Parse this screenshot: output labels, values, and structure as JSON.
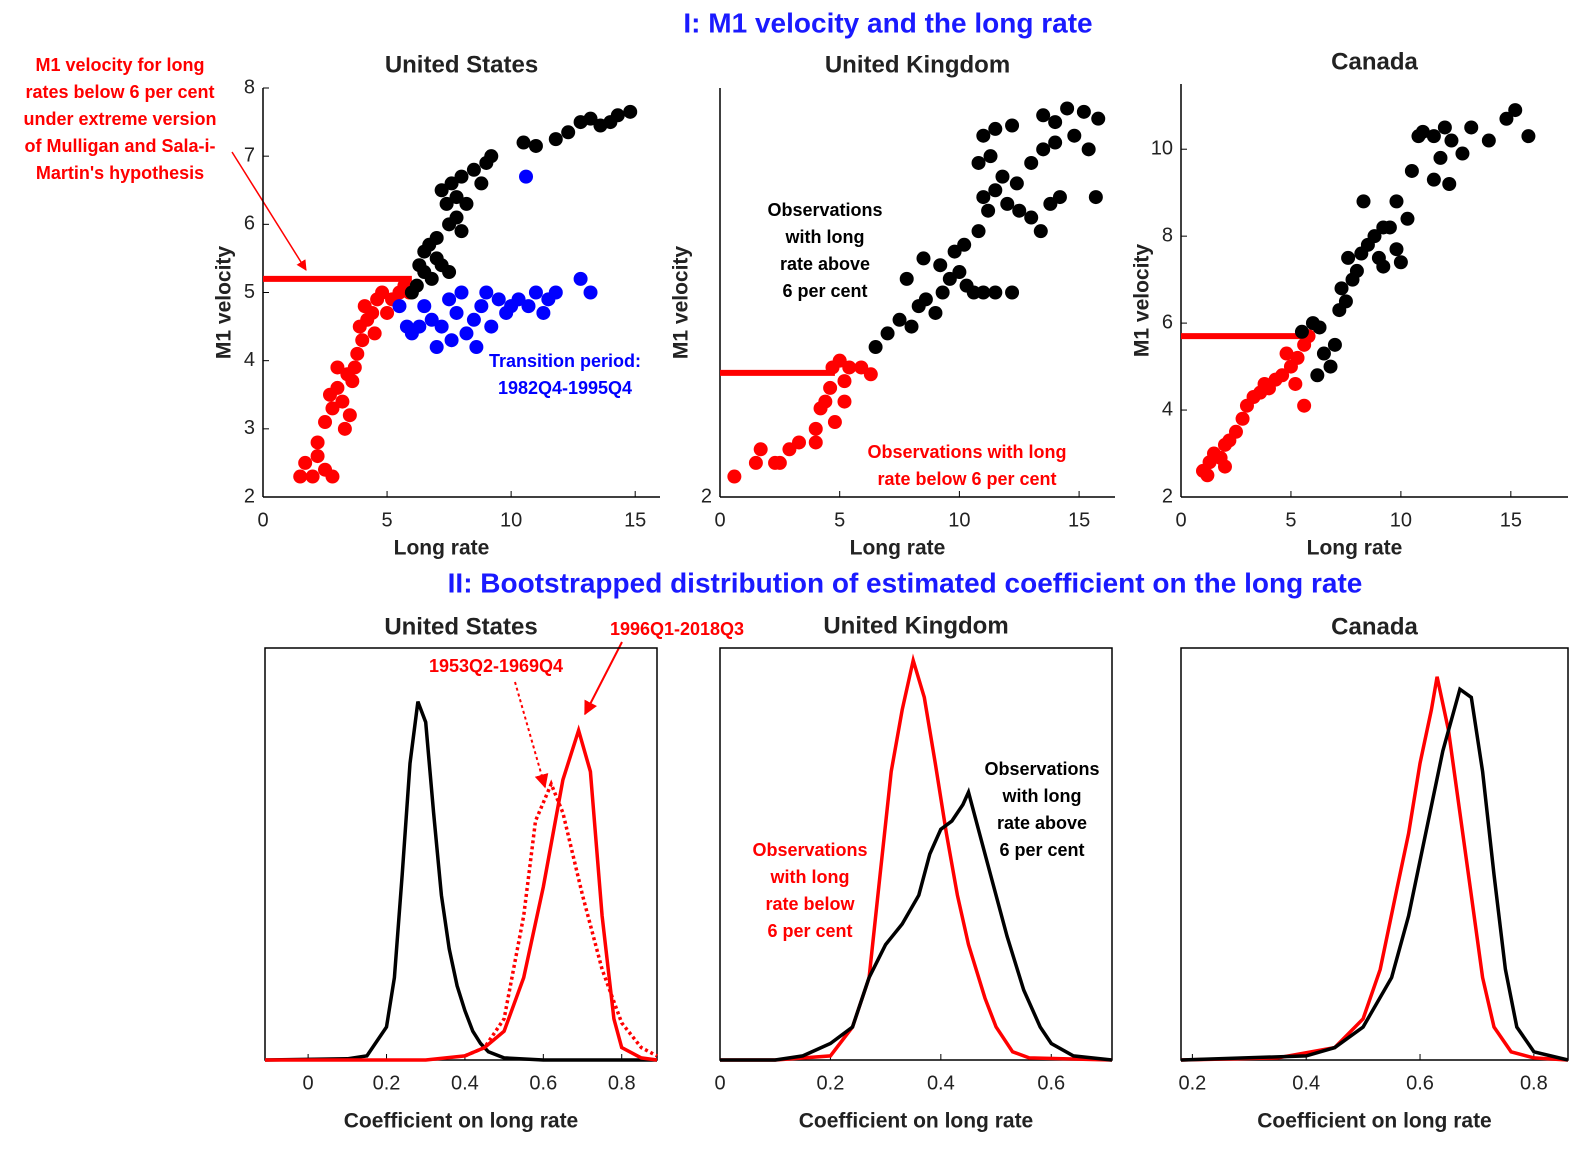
{
  "headings": [
    "I: M1 velocity and the long rate",
    "II: Bootstrapped distribution of estimated coefficient on the long rate"
  ],
  "heading_color": "#1a1aff",
  "chart_data": [
    {
      "type": "scatter",
      "title": "United States",
      "xlabel": "Long rate",
      "ylabel": "M1 velocity",
      "xlim": [
        0,
        16
      ],
      "ylim": [
        2,
        8
      ],
      "xticks": [
        0,
        5,
        10,
        15
      ],
      "yticks": [
        2,
        3,
        4,
        5,
        6,
        7,
        8
      ],
      "box": false,
      "hline": {
        "y": 5.2,
        "x": [
          0,
          6
        ],
        "color": "#ff0000"
      },
      "series": [
        {
          "color": "#ff0000",
          "x": [
            1.5,
            1.7,
            2,
            2.2,
            2.5,
            2.8,
            2.2,
            2.5,
            2.8,
            3,
            3.2,
            3.3,
            3.5,
            3.4,
            3.6,
            3.7,
            3.8,
            4,
            3.9,
            4.2,
            4.1,
            4.4,
            4.5,
            4.6,
            4.8,
            5,
            5.2,
            5.5,
            5.7,
            5.9,
            3,
            2.7
          ],
          "values": [
            2.3,
            2.5,
            2.3,
            2.6,
            2.4,
            2.3,
            2.8,
            3.1,
            3.3,
            3.6,
            3.4,
            3.0,
            3.2,
            3.8,
            3.7,
            3.9,
            4.1,
            4.3,
            4.5,
            4.6,
            4.8,
            4.7,
            4.4,
            4.9,
            5.0,
            4.7,
            4.9,
            5.0,
            5.1,
            5.0,
            3.9,
            3.5
          ]
        },
        {
          "color": "#000000",
          "x": [
            6,
            6.2,
            6.5,
            6.8,
            7,
            7.2,
            7.5,
            6.5,
            7,
            7.5,
            7.8,
            8,
            7.4,
            7.2,
            7.6,
            7.8,
            8.2,
            8,
            8.5,
            9,
            9.2,
            8.8,
            10.5,
            11,
            11.8,
            12.3,
            12.8,
            13.2,
            13.6,
            14,
            14.3,
            14.8,
            6.3,
            6.7
          ],
          "values": [
            5.0,
            5.1,
            5.3,
            5.2,
            5.5,
            5.4,
            5.3,
            5.6,
            5.8,
            6.0,
            6.1,
            5.9,
            6.3,
            6.5,
            6.6,
            6.4,
            6.3,
            6.7,
            6.8,
            6.9,
            7.0,
            6.6,
            7.2,
            7.15,
            7.25,
            7.35,
            7.5,
            7.55,
            7.45,
            7.5,
            7.6,
            7.65,
            5.4,
            5.7
          ]
        },
        {
          "color": "#0000ff",
          "x": [
            5.5,
            5.8,
            6,
            6.3,
            6.5,
            6.8,
            7,
            7.2,
            7.5,
            7.8,
            8,
            8.2,
            8.5,
            8.8,
            9,
            9.2,
            9.5,
            9.8,
            10,
            10.3,
            10.7,
            11,
            11.3,
            11.5,
            11.8,
            12.8,
            13.2,
            10.6,
            8.6,
            7.6
          ],
          "values": [
            4.8,
            4.5,
            4.4,
            4.5,
            4.8,
            4.6,
            4.2,
            4.5,
            4.9,
            4.7,
            5.0,
            4.4,
            4.6,
            4.8,
            5.0,
            4.5,
            4.9,
            4.7,
            4.8,
            4.9,
            4.8,
            5.0,
            4.7,
            4.9,
            5.0,
            5.2,
            5.0,
            6.7,
            4.2,
            4.3
          ]
        }
      ],
      "annotations": [
        {
          "text": [
            "M1 velocity for long",
            "rates below 6 per cent",
            "under extreme version",
            "of Mulligan and Sala-i-",
            "Martin's hypothesis"
          ],
          "color": "#ff0000"
        },
        {
          "text": [
            "Transition period:",
            "1982Q4-1995Q4"
          ],
          "color": "#0000ff"
        }
      ]
    },
    {
      "type": "scatter",
      "title": "United Kingdom",
      "xlabel": "Long rate",
      "ylabel": "M1 velocity",
      "xlim": [
        0,
        16.5
      ],
      "ylim": [
        2,
        8
      ],
      "xticks": [
        0,
        5,
        10,
        15
      ],
      "yticks": [
        2
      ],
      "box": false,
      "hline": {
        "y": 3.82,
        "x": [
          0,
          4.8
        ],
        "color": "#ff0000"
      },
      "series": [
        {
          "color": "#ff0000",
          "x": [
            0.6,
            1.7,
            2.3,
            2.9,
            3.3,
            4.0,
            4.2,
            4.4,
            4.6,
            4.7,
            5.0,
            5.2,
            5.4,
            5.9,
            6.3,
            4.8,
            4.0,
            2.5,
            1.5,
            5.2
          ],
          "values": [
            2.3,
            2.7,
            2.5,
            2.7,
            2.8,
            3.0,
            3.3,
            3.4,
            3.6,
            3.9,
            4.0,
            3.7,
            3.9,
            3.9,
            3.8,
            3.1,
            2.8,
            2.5,
            2.5,
            3.4
          ]
        },
        {
          "color": "#000000",
          "x": [
            6.5,
            7,
            7.5,
            8,
            8.3,
            8.6,
            9,
            9.3,
            9.6,
            10,
            10.3,
            10.6,
            11,
            11.5,
            12.2,
            9.2,
            9.8,
            10.2,
            10.8,
            11.2,
            11,
            11.5,
            12,
            12.5,
            13,
            13.4,
            13.8,
            14.2,
            10.8,
            11.3,
            11.8,
            12.4,
            13,
            13.5,
            14,
            14.8,
            15.4,
            15.7,
            11,
            11.5,
            12.2,
            13.5,
            14,
            14.5,
            15.2,
            15.8,
            7.8,
            8.5
          ],
          "values": [
            4.2,
            4.4,
            4.6,
            4.5,
            4.8,
            4.9,
            4.7,
            5.0,
            5.2,
            5.3,
            5.1,
            5.0,
            5.0,
            5.0,
            5.0,
            5.4,
            5.6,
            5.7,
            5.9,
            6.2,
            6.4,
            6.5,
            6.3,
            6.2,
            6.1,
            5.9,
            6.3,
            6.4,
            6.9,
            7.0,
            6.7,
            6.6,
            6.9,
            7.1,
            7.2,
            7.3,
            7.1,
            6.4,
            7.3,
            7.4,
            7.45,
            7.6,
            7.5,
            7.7,
            7.65,
            7.55,
            5.2,
            5.5
          ]
        }
      ],
      "annotations": [
        {
          "text": [
            "Observations",
            "with long",
            "rate above",
            "6 per cent"
          ],
          "color": "#000000"
        },
        {
          "text": [
            "Observations with long",
            "rate below 6 per cent"
          ],
          "color": "#ff0000"
        }
      ]
    },
    {
      "type": "scatter",
      "title": "Canada",
      "xlabel": "Long rate",
      "ylabel": "M1 velocity",
      "xlim": [
        0,
        17.6
      ],
      "ylim": [
        2,
        11.5
      ],
      "xticks": [
        0,
        5,
        10,
        15
      ],
      "yticks": [
        2,
        4,
        6,
        8,
        10
      ],
      "box": false,
      "hline": {
        "y": 5.7,
        "x": [
          0,
          5.7
        ],
        "color": "#ff0000"
      },
      "series": [
        {
          "color": "#ff0000",
          "x": [
            1,
            1.3,
            1.5,
            1.8,
            2,
            2.2,
            2.5,
            2.8,
            3,
            3.3,
            3.6,
            4,
            4.3,
            4.6,
            5,
            5.3,
            5.6,
            5.8,
            5.6,
            5.2,
            1.2,
            2,
            4.8,
            3.8
          ],
          "values": [
            2.6,
            2.8,
            3.0,
            2.9,
            3.2,
            3.3,
            3.5,
            3.8,
            4.1,
            4.3,
            4.4,
            4.5,
            4.7,
            4.8,
            5.0,
            5.2,
            5.5,
            5.7,
            4.1,
            4.6,
            2.5,
            2.7,
            5.3,
            4.6
          ]
        },
        {
          "color": "#000000",
          "x": [
            5.5,
            6,
            6.3,
            6.5,
            6.2,
            6.8,
            7,
            7.2,
            7.5,
            7.3,
            7.8,
            8,
            7.6,
            8.2,
            8.5,
            8.8,
            9,
            9.2,
            9.5,
            9.8,
            10,
            10.3,
            9.8,
            10.5,
            10.8,
            11,
            11.5,
            12,
            12.3,
            12.8,
            13.2,
            11.8,
            11.5,
            12.2,
            14,
            14.8,
            15.2,
            15.8,
            8.3,
            9.2
          ],
          "values": [
            5.8,
            6.0,
            5.9,
            5.3,
            4.8,
            5.0,
            5.5,
            6.3,
            6.5,
            6.8,
            7.0,
            7.2,
            7.5,
            7.6,
            7.8,
            8.0,
            7.5,
            7.3,
            8.2,
            7.7,
            7.4,
            8.4,
            8.8,
            9.5,
            10.3,
            10.4,
            10.3,
            10.5,
            10.2,
            9.9,
            10.5,
            9.8,
            9.3,
            9.2,
            10.2,
            10.7,
            10.9,
            10.3,
            8.8,
            8.2
          ]
        }
      ],
      "annotations": []
    },
    {
      "type": "line",
      "title": "United States",
      "xlabel": "Coefficient on long rate",
      "xlim": [
        -0.11,
        0.89
      ],
      "ylim": [
        0,
        1
      ],
      "xticks": [
        0,
        0.2,
        0.4,
        0.6,
        0.8
      ],
      "box": true,
      "series": [
        {
          "color": "#000000",
          "linestyle": "solid",
          "x": [
            -0.11,
            0.1,
            0.15,
            0.2,
            0.22,
            0.24,
            0.26,
            0.28,
            0.3,
            0.32,
            0.34,
            0.36,
            0.38,
            0.4,
            0.42,
            0.44,
            0.46,
            0.5,
            0.6,
            0.89
          ],
          "values": [
            0,
            0.003,
            0.01,
            0.08,
            0.2,
            0.45,
            0.72,
            0.87,
            0.82,
            0.6,
            0.4,
            0.27,
            0.18,
            0.12,
            0.07,
            0.04,
            0.02,
            0.005,
            0,
            0
          ]
        },
        {
          "color": "#ff0000",
          "linestyle": "solid",
          "x": [
            -0.11,
            0.3,
            0.4,
            0.45,
            0.5,
            0.55,
            0.6,
            0.65,
            0.69,
            0.72,
            0.75,
            0.78,
            0.8,
            0.85,
            0.89
          ],
          "values": [
            0,
            0,
            0.01,
            0.03,
            0.07,
            0.2,
            0.42,
            0.68,
            0.8,
            0.7,
            0.35,
            0.1,
            0.03,
            0.005,
            0
          ]
        },
        {
          "color": "#ff0000",
          "linestyle": "dotted",
          "x": [
            0.4,
            0.45,
            0.5,
            0.55,
            0.58,
            0.62,
            0.65,
            0.7,
            0.75,
            0.8,
            0.85,
            0.89
          ],
          "values": [
            0.01,
            0.03,
            0.1,
            0.35,
            0.58,
            0.67,
            0.6,
            0.4,
            0.22,
            0.09,
            0.03,
            0.01
          ]
        }
      ],
      "annotations": [
        {
          "text": [
            "1996Q1-2018Q3"
          ],
          "color": "#ff0000"
        },
        {
          "text": [
            "1953Q2-1969Q4"
          ],
          "color": "#ff0000"
        }
      ]
    },
    {
      "type": "line",
      "title": "United Kingdom",
      "xlabel": "Coefficient on long rate",
      "xlim": [
        0,
        0.71
      ],
      "ylim": [
        0,
        1
      ],
      "xticks": [
        0,
        0.2,
        0.4,
        0.6
      ],
      "box": true,
      "series": [
        {
          "color": "#ff0000",
          "linestyle": "solid",
          "x": [
            0,
            0.1,
            0.2,
            0.24,
            0.27,
            0.29,
            0.31,
            0.33,
            0.35,
            0.37,
            0.39,
            0.41,
            0.43,
            0.45,
            0.48,
            0.5,
            0.53,
            0.56,
            0.71
          ],
          "values": [
            0,
            0,
            0.01,
            0.08,
            0.2,
            0.45,
            0.7,
            0.85,
            0.97,
            0.88,
            0.72,
            0.55,
            0.4,
            0.28,
            0.15,
            0.08,
            0.02,
            0.005,
            0
          ]
        },
        {
          "color": "#000000",
          "linestyle": "solid",
          "x": [
            0,
            0.1,
            0.15,
            0.2,
            0.24,
            0.27,
            0.3,
            0.33,
            0.36,
            0.38,
            0.4,
            0.42,
            0.44,
            0.45,
            0.47,
            0.49,
            0.52,
            0.55,
            0.58,
            0.6,
            0.64,
            0.71
          ],
          "values": [
            0,
            0,
            0.01,
            0.04,
            0.08,
            0.2,
            0.28,
            0.33,
            0.4,
            0.5,
            0.56,
            0.58,
            0.62,
            0.65,
            0.55,
            0.45,
            0.3,
            0.17,
            0.08,
            0.04,
            0.01,
            0
          ]
        }
      ],
      "annotations": [
        {
          "text": [
            "Observations",
            "with long",
            "rate above",
            "6 per cent"
          ],
          "color": "#000000"
        },
        {
          "text": [
            "Observations",
            "with long",
            "rate below",
            "6 per cent"
          ],
          "color": "#ff0000"
        }
      ]
    },
    {
      "type": "line",
      "title": "Canada",
      "xlabel": "Coefficient on long rate",
      "xlim": [
        0.18,
        0.86
      ],
      "ylim": [
        0,
        1
      ],
      "xticks": [
        0.2,
        0.4,
        0.6,
        0.8
      ],
      "box": true,
      "series": [
        {
          "color": "#ff0000",
          "linestyle": "solid",
          "x": [
            0.18,
            0.35,
            0.45,
            0.5,
            0.53,
            0.56,
            0.58,
            0.6,
            0.62,
            0.63,
            0.65,
            0.67,
            0.69,
            0.71,
            0.73,
            0.76,
            0.8,
            0.86
          ],
          "values": [
            0,
            0.005,
            0.03,
            0.1,
            0.22,
            0.42,
            0.55,
            0.72,
            0.85,
            0.93,
            0.8,
            0.6,
            0.4,
            0.2,
            0.08,
            0.02,
            0.005,
            0
          ]
        },
        {
          "color": "#000000",
          "linestyle": "solid",
          "x": [
            0.18,
            0.4,
            0.45,
            0.5,
            0.55,
            0.58,
            0.61,
            0.64,
            0.67,
            0.69,
            0.71,
            0.73,
            0.75,
            0.77,
            0.8,
            0.86
          ],
          "values": [
            0,
            0.01,
            0.03,
            0.08,
            0.2,
            0.35,
            0.55,
            0.75,
            0.9,
            0.88,
            0.7,
            0.45,
            0.22,
            0.08,
            0.02,
            0
          ]
        }
      ],
      "annotations": []
    }
  ]
}
